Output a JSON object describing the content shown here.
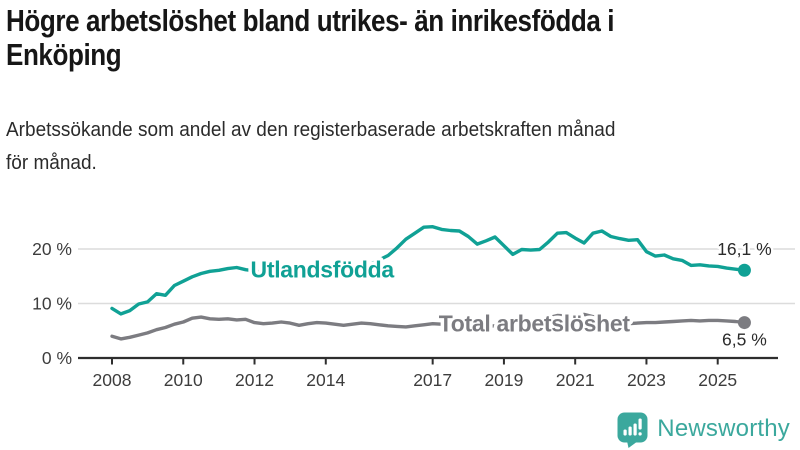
{
  "header": {
    "title_line1": "Högre arbetslöshet bland utrikes- än inrikesfödda i",
    "title_line2": "Enköping",
    "subtitle_line1": "Arbetssökande som andel av den registerbaserade arbetskraften månad",
    "subtitle_line2": "för månad."
  },
  "footer": {
    "brand": "Newsworthy"
  },
  "colors": {
    "accent_teal": "#10A195",
    "series_gray": "#7C7C81",
    "logo_teal": "#3BA89D",
    "grid": "#DCDCDC",
    "axis": "#2E2E2E",
    "text_dark": "#161616"
  },
  "chart_data": {
    "type": "line",
    "unit": "% av arbetskraften",
    "grid": true,
    "x_axis": {
      "start_year": 2008,
      "step_years": 0.25,
      "end_year": 2025.75,
      "ticks": [
        {
          "year": 2008,
          "label": "2008"
        },
        {
          "year": 2010,
          "label": "2010"
        },
        {
          "year": 2012,
          "label": "2012"
        },
        {
          "year": 2014,
          "label": "2014"
        },
        {
          "year": 2017,
          "label": "2017"
        },
        {
          "year": 2019,
          "label": "2019"
        },
        {
          "year": 2021,
          "label": "2021"
        },
        {
          "year": 2023,
          "label": "2023"
        },
        {
          "year": 2025,
          "label": "2025"
        }
      ]
    },
    "y_axis": {
      "min": 0,
      "max": 26,
      "ticks": [
        {
          "value": 0,
          "label": "0 %"
        },
        {
          "value": 10,
          "label": "10 %"
        },
        {
          "value": 20,
          "label": "20 %"
        }
      ]
    },
    "series": [
      {
        "name": "Utlandsfödda",
        "color": "#10A195",
        "end_label": "16,1 %",
        "end_label_position": "above",
        "line_label_at": {
          "x": 2013.9,
          "y": 16.2
        },
        "values": [
          9.1,
          8.1,
          8.7,
          9.9,
          10.3,
          11.8,
          11.5,
          13.3,
          14.1,
          14.9,
          15.5,
          15.9,
          16.1,
          16.4,
          16.6,
          16.2,
          16.0,
          15.7,
          15.4,
          15.3,
          15.2,
          15.4,
          15.3,
          15.5,
          15.6,
          15.8,
          16.0,
          16.3,
          16.6,
          17.2,
          18.0,
          18.8,
          20.2,
          21.8,
          22.9,
          24.0,
          24.1,
          23.6,
          23.4,
          23.3,
          22.3,
          20.9,
          21.5,
          22.2,
          20.6,
          19.0,
          19.9,
          19.8,
          19.9,
          21.3,
          22.9,
          23.0,
          22.0,
          21.1,
          22.9,
          23.3,
          22.3,
          21.9,
          21.6,
          21.7,
          19.5,
          18.7,
          18.9,
          18.2,
          17.9,
          17.0,
          17.1,
          16.9,
          16.8,
          16.5,
          16.3,
          16.1
        ]
      },
      {
        "name": "Total arbetslöshet",
        "color": "#7C7C81",
        "end_label": "6,5 %",
        "end_label_position": "below",
        "line_label_at": {
          "x": 2019.85,
          "y": 6.3
        },
        "values": [
          4.0,
          3.5,
          3.8,
          4.2,
          4.6,
          5.2,
          5.6,
          6.2,
          6.6,
          7.3,
          7.5,
          7.2,
          7.1,
          7.2,
          7.0,
          7.1,
          6.5,
          6.3,
          6.4,
          6.6,
          6.4,
          6.0,
          6.3,
          6.5,
          6.4,
          6.2,
          6.0,
          6.2,
          6.4,
          6.3,
          6.1,
          5.9,
          5.8,
          5.7,
          5.9,
          6.1,
          6.3,
          6.2,
          6.1,
          6.0,
          6.1,
          5.9,
          5.8,
          5.9,
          6.0,
          6.1,
          6.2,
          6.3,
          6.5,
          7.4,
          7.8,
          7.7,
          7.8,
          8.0,
          7.6,
          7.0,
          6.6,
          6.4,
          6.3,
          6.4,
          6.5,
          6.5,
          6.6,
          6.7,
          6.8,
          6.9,
          6.8,
          6.9,
          6.9,
          6.8,
          6.7,
          6.5
        ]
      }
    ]
  }
}
